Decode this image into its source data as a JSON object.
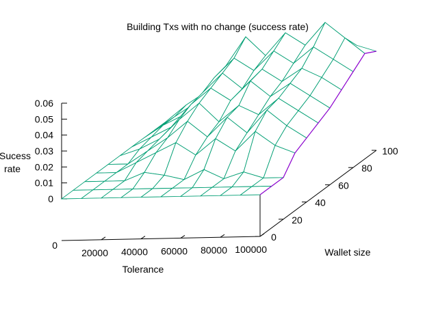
{
  "chart_data": {
    "type": "surface",
    "title": "Building Txs with no change (success rate)",
    "xlabel": "Tolerance",
    "ylabel": "Wallet size",
    "zlabel_lines": [
      "Sucess",
      "rate"
    ],
    "xlim": [
      0,
      100000
    ],
    "ylim": [
      0,
      100
    ],
    "zlim": [
      0,
      0.06
    ],
    "x_ticks": [
      20000,
      40000,
      60000,
      80000,
      100000
    ],
    "y_ticks": [
      0,
      20,
      40,
      60,
      80,
      100
    ],
    "z_ticks": [
      0,
      0.01,
      0.02,
      0.03,
      0.04,
      0.05,
      0.06
    ],
    "z_tick_labels": [
      "0",
      "0.01",
      "0.02",
      "0.03",
      "0.04",
      "0.05",
      "0.06"
    ],
    "base_label": "0",
    "x": [
      0,
      10000,
      20000,
      30000,
      40000,
      50000,
      60000,
      70000,
      80000,
      90000,
      100000
    ],
    "y": [
      0,
      10,
      20,
      30,
      40,
      50,
      60,
      70,
      80,
      90,
      100
    ],
    "z": [
      [
        0,
        0,
        0,
        0,
        0,
        0,
        0,
        0,
        0,
        0,
        0
      ],
      [
        0,
        0,
        0,
        0,
        0,
        0,
        0,
        0,
        0,
        0,
        0
      ],
      [
        0,
        0,
        0,
        0.005,
        0.003,
        0,
        0.006,
        0,
        0.004,
        0,
        0
      ],
      [
        0,
        0,
        0.006,
        0.012,
        0.018,
        0.01,
        0.02,
        0.012,
        0.024,
        0.015,
        0.01
      ],
      [
        0,
        0,
        0.008,
        0.016,
        0.026,
        0.016,
        0.028,
        0.018,
        0.032,
        0.022,
        0.014
      ],
      [
        0,
        0.004,
        0.01,
        0.022,
        0.032,
        0.02,
        0.03,
        0.024,
        0.034,
        0.026,
        0.018
      ],
      [
        0,
        0.006,
        0.012,
        0.026,
        0.036,
        0.028,
        0.04,
        0.03,
        0.038,
        0.03,
        0.022
      ],
      [
        0,
        0.008,
        0.014,
        0.028,
        0.04,
        0.03,
        0.042,
        0.034,
        0.042,
        0.036,
        0.028
      ],
      [
        0,
        0.008,
        0.016,
        0.032,
        0.044,
        0.036,
        0.048,
        0.04,
        0.05,
        0.042,
        0.034
      ],
      [
        0,
        0.01,
        0.018,
        0.034,
        0.052,
        0.04,
        0.054,
        0.046,
        0.06,
        0.05,
        0.04
      ],
      [
        0,
        0.006,
        0.012,
        0.024,
        0.034,
        0.028,
        0.04,
        0.032,
        0.046,
        0.04,
        0.036
      ]
    ],
    "grid": false,
    "legend": "none",
    "surface_color": "#009e73",
    "underside_color": "#9400d3",
    "axis_color": "#000000"
  }
}
